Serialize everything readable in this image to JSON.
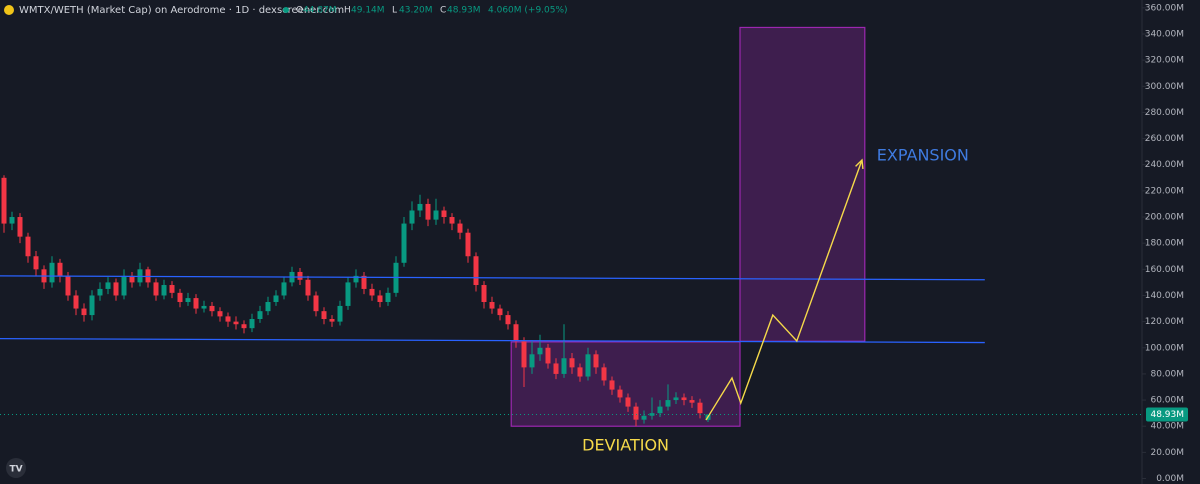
{
  "chart_data": {
    "type": "candlestick",
    "title": "WMTX/WETH (Market Cap) on Aerodrome · 1D · dexscreener.com",
    "header_stats": [
      {
        "label": "O",
        "text": "44.87M"
      },
      {
        "label": "H",
        "text": "49.14M"
      },
      {
        "label": "L",
        "text": "43.20M"
      },
      {
        "label": "C",
        "text": "48.93M"
      }
    ],
    "change": "4.060M (+9.05%)",
    "last_label": "48.93M",
    "up_color": "#089981",
    "down_color": "#f23645",
    "grid": false,
    "ylim": [
      -4.2,
      366
    ],
    "yticks": [
      {
        "value": 0,
        "label": "0.00M"
      },
      {
        "value": 20,
        "label": "20.00M"
      },
      {
        "value": 40,
        "label": "40.00M"
      },
      {
        "value": 60,
        "label": "60.00M"
      },
      {
        "value": 80,
        "label": "80.00M"
      },
      {
        "value": 100,
        "label": "100.00M"
      },
      {
        "value": 120,
        "label": "120.00M"
      },
      {
        "value": 140,
        "label": "140.00M"
      },
      {
        "value": 160,
        "label": "160.00M"
      },
      {
        "value": 180,
        "label": "180.00M"
      },
      {
        "value": 200,
        "label": "200.00M"
      },
      {
        "value": 220,
        "label": "220.00M"
      },
      {
        "value": 240,
        "label": "240.00M"
      },
      {
        "value": 260,
        "label": "260.00M"
      },
      {
        "value": 280,
        "label": "280.00M"
      },
      {
        "value": 300,
        "label": "300.00M"
      },
      {
        "value": 320,
        "label": "320.00M"
      },
      {
        "value": 340,
        "label": "340.00M"
      },
      {
        "value": 360,
        "label": "360.00M"
      }
    ],
    "open": [
      230,
      195,
      200,
      185,
      170,
      160,
      150,
      165,
      155,
      140,
      130,
      125,
      140,
      145,
      150,
      140,
      155,
      150,
      160,
      150,
      140,
      148,
      142,
      135,
      138,
      130,
      132,
      128,
      124,
      120,
      118,
      115,
      122,
      128,
      135,
      140,
      150,
      158,
      152,
      140,
      128,
      122,
      120,
      132,
      150,
      155,
      145,
      140,
      135,
      142,
      165,
      195,
      205,
      210,
      198,
      205,
      200,
      195,
      188,
      170,
      148,
      135,
      130,
      125,
      118,
      105,
      85,
      95,
      100,
      88,
      80,
      92,
      85,
      78,
      95,
      85,
      75,
      68,
      62,
      55,
      45,
      48,
      50,
      55,
      60,
      62,
      60,
      58,
      44.87
    ],
    "high": [
      232,
      204,
      203,
      188,
      174,
      163,
      170,
      168,
      158,
      144,
      134,
      144,
      150,
      154,
      153,
      160,
      158,
      165,
      162,
      153,
      152,
      151,
      145,
      142,
      141,
      136,
      135,
      131,
      127,
      124,
      121,
      126,
      132,
      139,
      144,
      154,
      162,
      161,
      155,
      143,
      131,
      125,
      136,
      154,
      160,
      158,
      149,
      144,
      146,
      170,
      200,
      212,
      217,
      214,
      214,
      208,
      203,
      198,
      191,
      173,
      151,
      139,
      133,
      128,
      121,
      108,
      105,
      110,
      103,
      92,
      118,
      96,
      88,
      100,
      98,
      88,
      78,
      71,
      65,
      58,
      52,
      62,
      60,
      72,
      66,
      65,
      63,
      61,
      49.14
    ],
    "low": [
      188,
      190,
      180,
      165,
      155,
      145,
      146,
      150,
      136,
      125,
      120,
      121,
      136,
      141,
      136,
      137,
      146,
      147,
      146,
      136,
      137,
      138,
      131,
      132,
      126,
      127,
      124,
      120,
      116,
      114,
      111,
      112,
      119,
      125,
      132,
      137,
      147,
      148,
      136,
      124,
      118,
      116,
      117,
      129,
      146,
      141,
      136,
      131,
      132,
      139,
      162,
      190,
      200,
      193,
      194,
      195,
      190,
      183,
      165,
      143,
      130,
      126,
      121,
      114,
      100,
      70,
      80,
      90,
      84,
      76,
      77,
      80,
      74,
      75,
      80,
      71,
      64,
      58,
      51,
      40,
      42,
      45,
      47,
      52,
      57,
      56,
      54,
      46,
      43.2
    ],
    "close": [
      195,
      200,
      185,
      170,
      160,
      150,
      165,
      155,
      140,
      130,
      125,
      140,
      145,
      150,
      140,
      155,
      150,
      160,
      150,
      140,
      148,
      142,
      135,
      138,
      130,
      132,
      128,
      124,
      120,
      118,
      115,
      122,
      128,
      135,
      140,
      150,
      158,
      152,
      140,
      128,
      122,
      120,
      132,
      150,
      155,
      145,
      140,
      135,
      142,
      165,
      195,
      205,
      210,
      198,
      205,
      200,
      195,
      188,
      170,
      148,
      135,
      130,
      125,
      118,
      105,
      85,
      95,
      100,
      88,
      80,
      92,
      85,
      78,
      95,
      85,
      75,
      68,
      62,
      55,
      45,
      48,
      50,
      55,
      60,
      62,
      60,
      58,
      50,
      48.93
    ],
    "annotations": {
      "lines": [
        {
          "x": [
            -0.5,
            122.6
          ],
          "y": [
            155,
            152
          ],
          "color": "#2962ff"
        },
        {
          "x": [
            -0.5,
            122.6
          ],
          "y": [
            107,
            104
          ],
          "color": "#2962ff"
        }
      ],
      "boxes": [
        {
          "text": "DEVIATION",
          "x": [
            63.4,
            92
          ],
          "y": [
            40,
            104.5
          ],
          "color": "#9c27b0",
          "text_color": "#f5d94a"
        },
        {
          "text": "EXPANSION",
          "x": [
            92,
            107.6
          ],
          "y": [
            105,
            345
          ],
          "color": "#9c27b0",
          "text_color": "#3f7be0"
        }
      ],
      "path": {
        "x": [
          87.75,
          91,
          92.1,
          96.1,
          99.1,
          107.25
        ],
        "y": [
          44.7,
          76.9,
          57.7,
          125,
          105.2,
          243.6
        ],
        "color": "#f5d94a"
      }
    }
  }
}
